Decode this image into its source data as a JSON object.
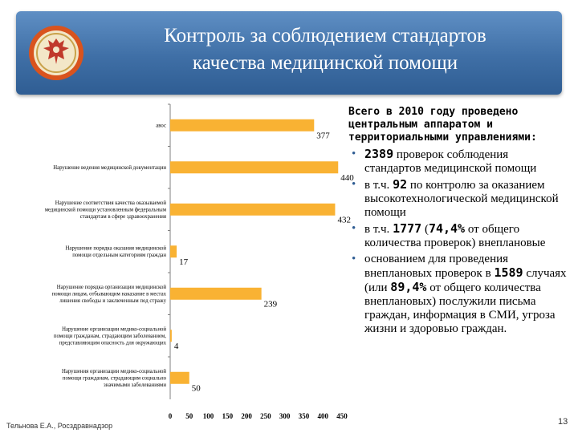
{
  "slide": {
    "title_line1": "Контроль за соблюдением стандартов",
    "title_line2": "качества медицинской помощи",
    "footer": "Тельнова Е.А., Росздравнадзор",
    "page_number": "13",
    "banner_color": "#3f6fa6",
    "emblem_icon": "russian-eagle-emblem"
  },
  "chart_data": {
    "type": "bar",
    "orientation": "horizontal",
    "bar_color": "#f9b233",
    "categories": [
      "авос",
      "Нарушение ведения медицинской документации",
      "Нарушение соответствия качества оказываемой медицинской помощи установленным федеральным стандартам в сфере здравоохранения",
      "Нарушение порядка оказания медицинской помощи отдельным категориям граждан",
      "Нарушение порядка организации медицинской помощи лицам, отбывающим наказание в местах лишения свободы и заключенным под стражу",
      "Нарушение организации медико-социальной помощи гражданам, страдающим заболеванием, представляющим опасность для окружающих",
      "Нарушения организации медико-социальной помощи гражданам, страдающим социально значимыми заболеваниями"
    ],
    "values": [
      377,
      440,
      432,
      17,
      239,
      4,
      50
    ],
    "data_labels": [
      "377",
      "440",
      "432",
      "17",
      "239",
      "4",
      "50"
    ],
    "xlim": [
      0,
      450
    ],
    "xticks": [
      "0",
      "50",
      "100",
      "150",
      "200",
      "250",
      "300",
      "350",
      "400",
      "450"
    ],
    "grid": false,
    "legend": "none"
  },
  "right_panel": {
    "header": "Всего в 2010 году проведено центральным аппаратом и территориальными управлениями:",
    "bullet_char": "•",
    "b1_num": "2389",
    "b1_text": " проверок соблюдения стандартов медицинской помощи",
    "b2_pre": "в т.ч. ",
    "b2_num": "92",
    "b2_text": " по контролю за оказанием высокотехнологической медицинской помощи",
    "b3_pre": "в т.ч. ",
    "b3_num": "1777",
    "b3_mid": " (",
    "b3_pct": "74,4%",
    "b3_text": " от общего количества проверок) внеплановые",
    "b4_pre": "основанием для проведения внеплановых проверок в ",
    "b4_num": "1589",
    "b4_mid": " случаях (или ",
    "b4_pct": "89,4%",
    "b4_text": " от общего количества внеплановых) послужили письма граждан, информация в СМИ, угроза жизни и здоровью граждан."
  }
}
